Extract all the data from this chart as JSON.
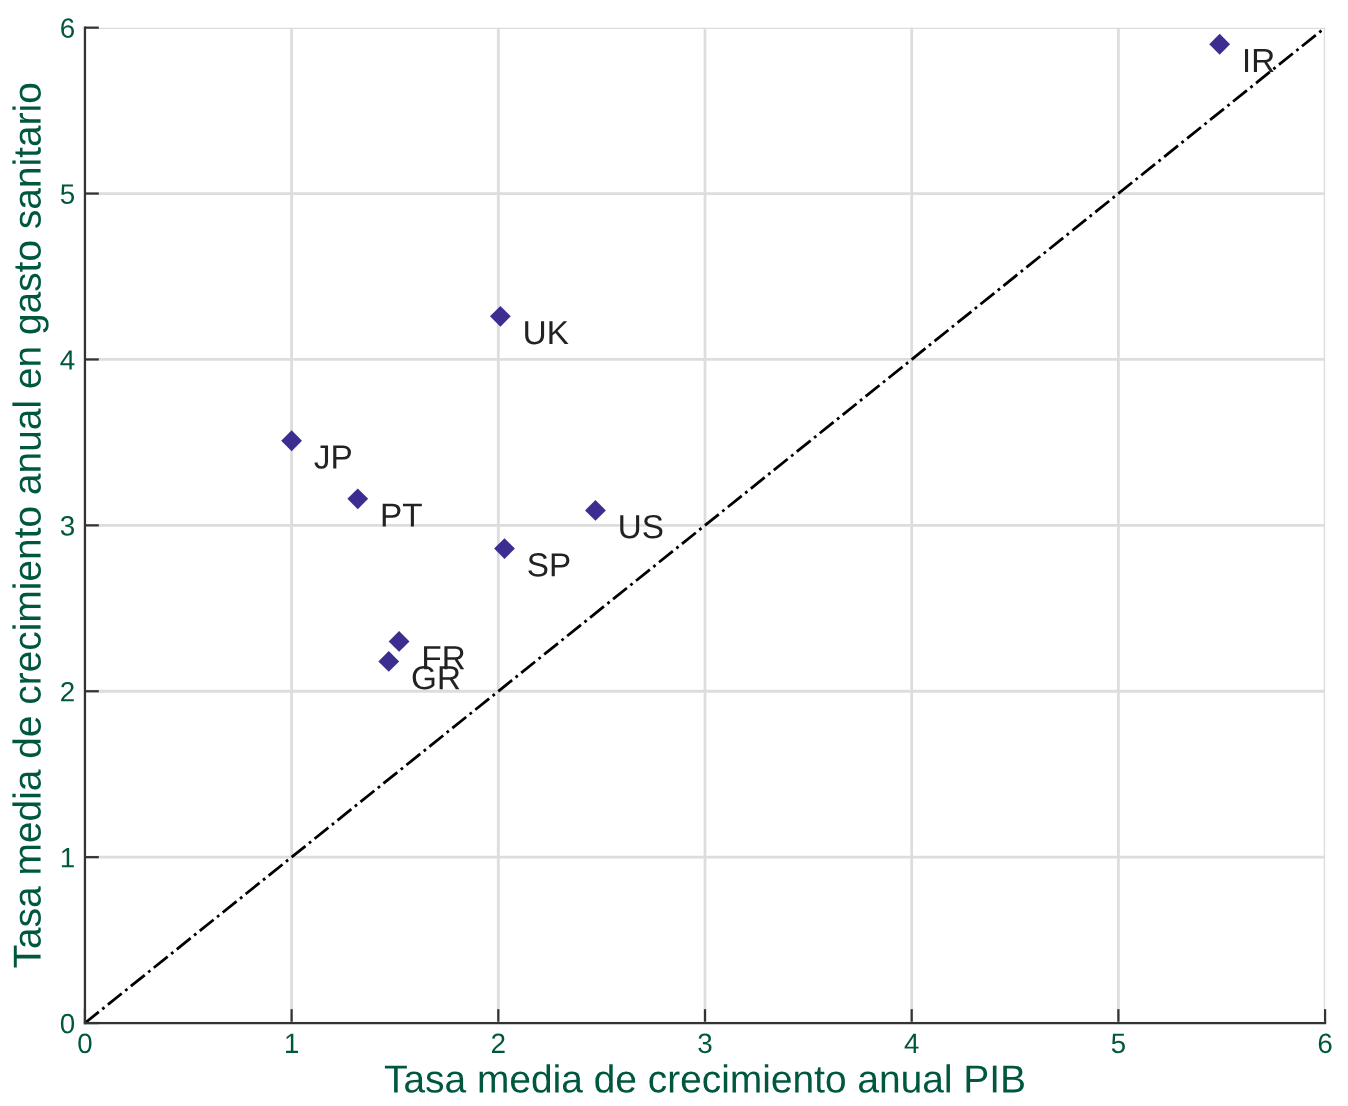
{
  "chart_data": {
    "type": "scatter",
    "xlabel": "Tasa media de crecimiento anual PIB",
    "ylabel": "Tasa media de crecimiento anual en gasto sanitario",
    "series": [
      {
        "color": "#3c2d91",
        "x": [
          5.49,
          2.01,
          1.0,
          1.32,
          2.47,
          2.03,
          1.52,
          1.47
        ],
        "values": [
          5.9,
          4.26,
          3.51,
          3.16,
          3.09,
          2.86,
          2.3,
          2.18
        ],
        "marker": "diamond"
      },
      {
        "type": "line",
        "color": "#000000",
        "x": [
          0,
          6
        ],
        "values": [
          0,
          6
        ],
        "line_style": "dashdot",
        "marker": "none"
      }
    ],
    "annotations": [
      {
        "text": "IR",
        "x": 5.49,
        "y": 5.9
      },
      {
        "text": "UK",
        "x": 2.01,
        "y": 4.26
      },
      {
        "text": "JP",
        "x": 1.0,
        "y": 3.51
      },
      {
        "text": "PT",
        "x": 1.32,
        "y": 3.16
      },
      {
        "text": "US",
        "x": 2.47,
        "y": 3.09
      },
      {
        "text": "SP",
        "x": 2.03,
        "y": 2.86
      },
      {
        "text": "FR",
        "x": 1.52,
        "y": 2.3
      },
      {
        "text": "GR",
        "x": 1.47,
        "y": 2.18
      }
    ],
    "xlim": [
      0,
      6
    ],
    "ylim": [
      0,
      6
    ],
    "xticks": [
      0,
      1,
      2,
      3,
      4,
      5,
      6
    ],
    "yticks": [
      0,
      1,
      2,
      3,
      4,
      5,
      6
    ],
    "grid": true
  }
}
